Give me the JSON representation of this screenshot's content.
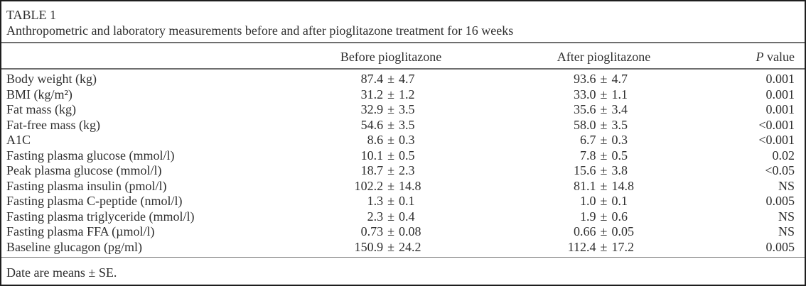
{
  "caption": {
    "label": "TABLE 1",
    "text": "Anthropometric and laboratory measurements before and after pioglitazone treatment for 16 weeks"
  },
  "header": {
    "before": "Before pioglitazone",
    "after": "After pioglitazone",
    "p_italic": "P",
    "p_rest": " value"
  },
  "sym": {
    "pm": "±"
  },
  "rows": [
    {
      "label": "Body weight (kg)",
      "b_m": "87.4",
      "b_s": "4.7",
      "a_m": "93.6",
      "a_s": "4.7",
      "p": "0.001"
    },
    {
      "label": "BMI (kg/m²)",
      "b_m": "31.2",
      "b_s": "1.2",
      "a_m": "33.0",
      "a_s": "1.1",
      "p": "0.001"
    },
    {
      "label": "Fat mass (kg)",
      "b_m": "32.9",
      "b_s": "3.5",
      "a_m": "35.6",
      "a_s": "3.4",
      "p": "0.001"
    },
    {
      "label": "Fat-free mass (kg)",
      "b_m": "54.6",
      "b_s": "3.5",
      "a_m": "58.0",
      "a_s": "3.5",
      "p": "<0.001"
    },
    {
      "label": "A1C",
      "b_m": "8.6",
      "b_s": "0.3",
      "a_m": "6.7",
      "a_s": "0.3",
      "p": "<0.001"
    },
    {
      "label": "Fasting plasma glucose (mmol/l)",
      "b_m": "10.1",
      "b_s": "0.5",
      "a_m": "7.8",
      "a_s": "0.5",
      "p": "0.02"
    },
    {
      "label": "Peak plasma glucose (mmol/l)",
      "b_m": "18.7",
      "b_s": "2.3",
      "a_m": "15.6",
      "a_s": "3.8",
      "p": "<0.05"
    },
    {
      "label": "Fasting plasma insulin (pmol/l)",
      "b_m": "102.2",
      "b_s": "14.8",
      "a_m": "81.1",
      "a_s": "14.8",
      "p": "NS"
    },
    {
      "label": "Fasting plasma C-peptide (nmol/l)",
      "b_m": "1.3",
      "b_s": "0.1",
      "a_m": "1.0",
      "a_s": "0.1",
      "p": "0.005"
    },
    {
      "label": "Fasting plasma triglyceride (mmol/l)",
      "b_m": "2.3",
      "b_s": "0.4",
      "a_m": "1.9",
      "a_s": "0.6",
      "p": "NS"
    },
    {
      "label": "Fasting plasma FFA (µmol/l)",
      "b_m": "0.73",
      "b_s": "0.08",
      "a_m": "0.66",
      "a_s": "0.05",
      "p": "NS"
    },
    {
      "label": "Baseline glucagon (pg/ml)",
      "b_m": "150.9",
      "b_s": "24.2",
      "a_m": "112.4",
      "a_s": "17.2",
      "p": "0.005"
    }
  ],
  "footnote": "Date are means ± SE."
}
